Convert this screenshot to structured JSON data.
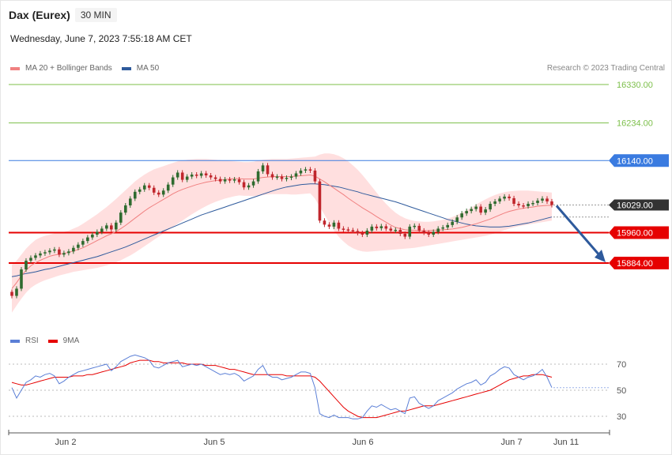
{
  "header": {
    "symbol": "Dax (Eurex)",
    "timeframe": "30 MIN",
    "datetime": "Wednesday, June 7, 2023 7:55:18 AM CET"
  },
  "legend": {
    "ma20_label": "MA 20 + Bollinger Bands",
    "ma50_label": "MA 50",
    "rsi_label": "RSI",
    "ma9_label": "9MA"
  },
  "copyright": "Research © 2023 Trading Central",
  "colors": {
    "ma20": "#f08080",
    "ma50": "#2e5a9c",
    "bands": "#ffd9d9",
    "resistance": "#7cbf4a",
    "pivot": "#3a7be0",
    "support": "#e60000",
    "arrow": "#2e5a9c",
    "bull": "#2f6b2f",
    "bear": "#c0262c"
  },
  "chart_data": {
    "type": "candlestick",
    "interval": "30 MIN",
    "x_ticks": [
      "Jun 2",
      "Jun 5",
      "Jun 6",
      "Jun 7",
      "Jun 11"
    ],
    "ylim": [
      15785,
      16370
    ],
    "levels": [
      {
        "value": 16330.0,
        "label": "16330.00",
        "kind": "resistance"
      },
      {
        "value": 16234.0,
        "label": "16234.00",
        "kind": "resistance"
      },
      {
        "value": 16140.0,
        "label": "16140.00",
        "kind": "pivot"
      },
      {
        "value": 15960.0,
        "label": "15960.00",
        "kind": "support"
      },
      {
        "value": 15884.0,
        "label": "15884.00",
        "kind": "support"
      }
    ],
    "last_price": {
      "value": 16029.0,
      "label": "16029.00"
    },
    "closes": [
      15802,
      15820,
      15868,
      15890,
      15897,
      15903,
      15908,
      15911,
      15915,
      15918,
      15905,
      15909,
      15913,
      15922,
      15930,
      15939,
      15948,
      15955,
      15962,
      15970,
      15978,
      15968,
      15985,
      16010,
      16028,
      16045,
      16062,
      16068,
      16078,
      16072,
      16060,
      16055,
      16065,
      16080,
      16098,
      16110,
      16092,
      16100,
      16105,
      16102,
      16108,
      16103,
      16098,
      16094,
      16088,
      16093,
      16090,
      16093,
      16086,
      16073,
      16078,
      16088,
      16113,
      16128,
      16106,
      16098,
      16100,
      16094,
      16097,
      16100,
      16108,
      16115,
      16118,
      16115,
      16088,
      15990,
      15980,
      15975,
      15985,
      15970,
      15968,
      15966,
      15964,
      15959,
      15955,
      15965,
      15975,
      15971,
      15976,
      15970,
      15965,
      15967,
      15957,
      15950,
      15975,
      15977,
      15965,
      15960,
      15955,
      15962,
      15970,
      15973,
      15979,
      15987,
      15998,
      16008,
      16014,
      16019,
      16025,
      16010,
      16018,
      16032,
      16038,
      16045,
      16050,
      16046,
      16032,
      16028,
      16026,
      16032,
      16034,
      16040,
      16045,
      16038,
      16029
    ],
    "ma20": [
      15820,
      15835,
      15852,
      15866,
      15877,
      15885,
      15891,
      15896,
      15901,
      15904,
      15906,
      15908,
      15911,
      15914,
      15918,
      15922,
      15928,
      15934,
      15940,
      15946,
      15952,
      15957,
      15963,
      15970,
      15978,
      15987,
      15996,
      16005,
      16014,
      16022,
      16029,
      16036,
      16043,
      16050,
      16057,
      16063,
      16068,
      16072,
      16076,
      16080,
      16083,
      16086,
      16088,
      16090,
      16091,
      16093,
      16094,
      16095,
      16095,
      16094,
      16094,
      16094,
      16096,
      16098,
      16099,
      16100,
      16100,
      16100,
      16100,
      16100,
      16101,
      16102,
      16103,
      16104,
      16101,
      16094,
      16087,
      16079,
      16071,
      16063,
      16055,
      16046,
      16038,
      16030,
      16022,
      16015,
      16008,
      16000,
      15993,
      15986,
      15979,
      15973,
      15970,
      15967,
      15966,
      15966,
      15965,
      15965,
      15965,
      15966,
      15966,
      15967,
      15968,
      15969,
      15971,
      15973,
      15976,
      15979,
      15982,
      15986,
      15990,
      15994,
      15999,
      16004,
      16009,
      16013,
      16016,
      16019,
      16021,
      16023,
      16024,
      16026,
      16027,
      16028,
      16028
    ],
    "ma50": [
      15850,
      15852,
      15855,
      15858,
      15860,
      15862,
      15865,
      15868,
      15870,
      15873,
      15876,
      15879,
      15882,
      15885,
      15888,
      15891,
      15894,
      15897,
      15900,
      15904,
      15908,
      15912,
      15916,
      15920,
      15924,
      15929,
      15934,
      15939,
      15944,
      15949,
      15954,
      15959,
      15964,
      15969,
      15974,
      15979,
      15984,
      15989,
      15994,
      15999,
      16004,
      16008,
      16012,
      16016,
      16020,
      16024,
      16028,
      16032,
      16036,
      16040,
      16044,
      16048,
      16052,
      16056,
      16060,
      16064,
      16068,
      16071,
      16074,
      16076,
      16078,
      16080,
      16081,
      16082,
      16082,
      16081,
      16080,
      16078,
      16076,
      16074,
      16071,
      16068,
      16065,
      16062,
      16058,
      16055,
      16052,
      16049,
      16046,
      16043,
      16040,
      16037,
      16033,
      16029,
      16025,
      16021,
      16017,
      16013,
      16009,
      16005,
      16001,
      15997,
      15993,
      15990,
      15987,
      15984,
      15981,
      15979,
      15977,
      15976,
      15975,
      15974,
      15974,
      15974,
      15975,
      15976,
      15978,
      15980,
      15982,
      15984,
      15987,
      15990,
      15993,
      15996,
      15999
    ],
    "bollinger_upper": [
      15880,
      15890,
      15905,
      15920,
      15932,
      15942,
      15948,
      15952,
      15955,
      15958,
      15960,
      15962,
      15965,
      15970,
      15975,
      15982,
      15990,
      15998,
      16006,
      16015,
      16024,
      16034,
      16044,
      16055,
      16066,
      16077,
      16088,
      16097,
      16105,
      16112,
      16118,
      16122,
      16126,
      16130,
      16134,
      16138,
      16140,
      16142,
      16143,
      16144,
      16144,
      16144,
      16143,
      16142,
      16141,
      16140,
      16139,
      16138,
      16137,
      16136,
      16136,
      16137,
      16140,
      16142,
      16143,
      16144,
      16144,
      16144,
      16144,
      16145,
      16146,
      16147,
      16148,
      16149,
      16150,
      16155,
      16158,
      16158,
      16156,
      16152,
      16146,
      16138,
      16128,
      16117,
      16104,
      16090,
      16075,
      16060,
      16045,
      16032,
      16020,
      16010,
      16002,
      15996,
      15992,
      15989,
      15988,
      15987,
      15987,
      15988,
      15990,
      15992,
      15995,
      15999,
      16004,
      16010,
      16016,
      16023,
      16030,
      16037,
      16043,
      16049,
      16054,
      16058,
      16061,
      16063,
      16064,
      16065,
      16065,
      16065,
      16064,
      16063,
      16062,
      16061,
      16060
    ],
    "bollinger_lower": [
      15760,
      15778,
      15795,
      15810,
      15822,
      15830,
      15836,
      15841,
      15845,
      15849,
      15853,
      15856,
      15859,
      15862,
      15864,
      15866,
      15868,
      15870,
      15872,
      15875,
      15878,
      15882,
      15886,
      15891,
      15897,
      15903,
      15910,
      15918,
      15926,
      15934,
      15942,
      15950,
      15958,
      15966,
      15974,
      15982,
      15990,
      15998,
      16006,
      16013,
      16020,
      16026,
      16032,
      16037,
      16041,
      16045,
      16048,
      16051,
      16053,
      16052,
      16052,
      16051,
      16052,
      16054,
      16055,
      16056,
      16056,
      16056,
      16056,
      16055,
      16055,
      16056,
      16057,
      16058,
      16045,
      16025,
      16005,
      15985,
      15965,
      15950,
      15938,
      15928,
      15921,
      15916,
      15913,
      15912,
      15913,
      15914,
      15915,
      15916,
      15917,
      15918,
      15919,
      15920,
      15921,
      15922,
      15924,
      15926,
      15928,
      15930,
      15932,
      15934,
      15936,
      15938,
      15940,
      15942,
      15944,
      15946,
      15948,
      15950,
      15952,
      15955,
      15958,
      15962,
      15966,
      15970,
      15973,
      15976,
      15978,
      15980,
      15982,
      15984,
      15986,
      15988,
      15990
    ],
    "rsi": {
      "ylim": [
        20,
        80
      ],
      "levels": [
        70,
        50,
        30
      ],
      "values": [
        52,
        44,
        50,
        56,
        58,
        61,
        60,
        62,
        63,
        61,
        55,
        57,
        60,
        62,
        64,
        65,
        66,
        67,
        68,
        69,
        70,
        65,
        68,
        72,
        74,
        76,
        77,
        76,
        75,
        73,
        68,
        67,
        69,
        71,
        72,
        73,
        68,
        69,
        70,
        69,
        70,
        68,
        66,
        64,
        62,
        63,
        62,
        63,
        61,
        57,
        59,
        61,
        66,
        69,
        62,
        60,
        60,
        58,
        59,
        60,
        62,
        64,
        64,
        63,
        52,
        32,
        30,
        29,
        31,
        29,
        29,
        29,
        28,
        28,
        29,
        34,
        38,
        37,
        39,
        37,
        35,
        36,
        34,
        32,
        44,
        45,
        40,
        38,
        36,
        38,
        42,
        44,
        46,
        48,
        51,
        53,
        55,
        56,
        58,
        54,
        56,
        61,
        63,
        66,
        68,
        67,
        62,
        60,
        58,
        60,
        61,
        63,
        66,
        60,
        52
      ],
      "ma9": [
        56,
        55,
        54,
        54,
        55,
        56,
        57,
        58,
        59,
        60,
        60,
        60,
        60,
        61,
        61,
        61,
        62,
        62,
        63,
        64,
        65,
        66,
        67,
        68,
        69,
        71,
        72,
        73,
        73,
        73,
        72,
        72,
        71,
        71,
        71,
        71,
        71,
        70,
        70,
        70,
        70,
        69,
        69,
        69,
        68,
        67,
        66,
        66,
        65,
        64,
        63,
        62,
        62,
        62,
        62,
        62,
        62,
        62,
        61,
        61,
        61,
        61,
        61,
        61,
        60,
        57,
        53,
        49,
        45,
        41,
        37,
        34,
        32,
        30,
        29,
        29,
        29,
        29,
        30,
        31,
        32,
        33,
        34,
        34,
        35,
        36,
        37,
        38,
        38,
        38,
        39,
        40,
        41,
        42,
        43,
        44,
        45,
        46,
        47,
        48,
        49,
        50,
        52,
        54,
        56,
        58,
        59,
        60,
        61,
        61,
        62,
        62,
        62,
        61,
        60
      ]
    }
  }
}
